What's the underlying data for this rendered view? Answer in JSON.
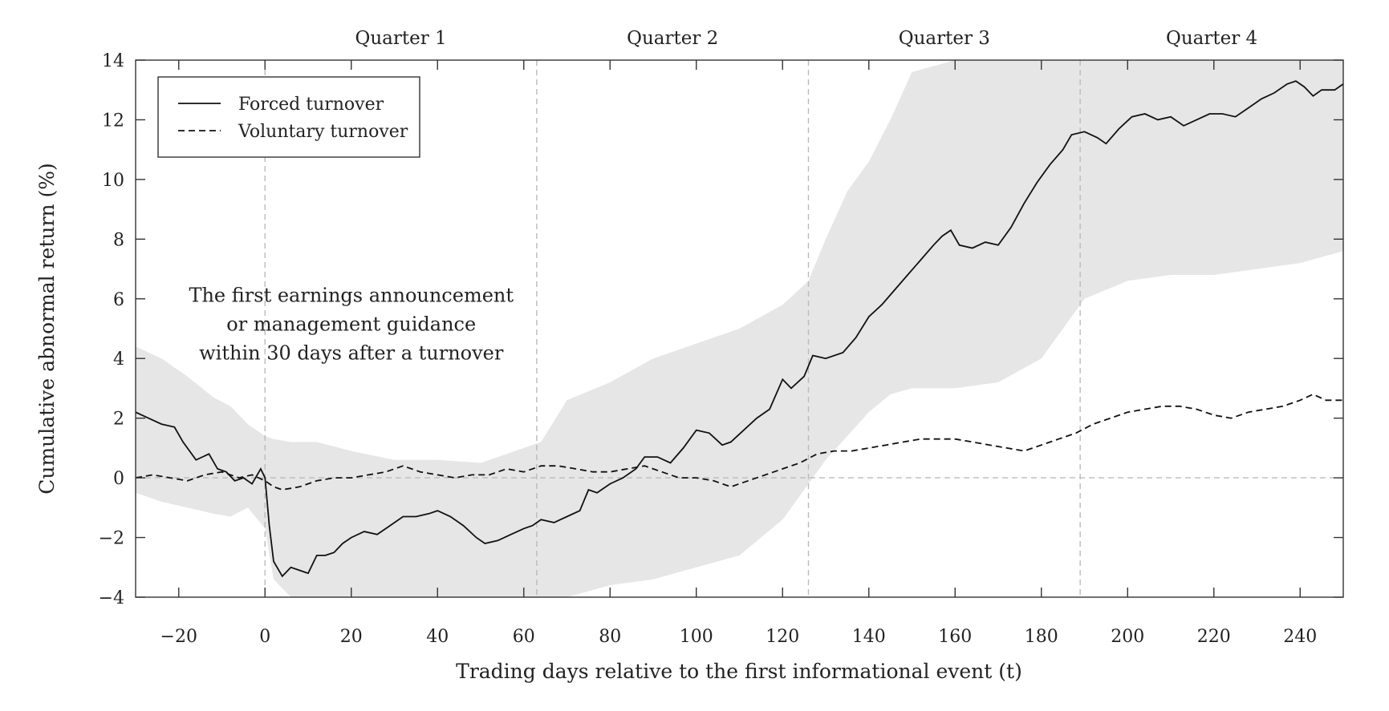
{
  "chart_data": {
    "type": "line",
    "title": "",
    "xlabel": "Trading days relative to the first informational event (t)",
    "ylabel": "Cumulative abnormal return (%)",
    "xlim": [
      -30,
      250
    ],
    "ylim": [
      -4,
      14
    ],
    "x_ticks": [
      -20,
      0,
      20,
      40,
      60,
      80,
      100,
      120,
      140,
      160,
      180,
      200,
      220,
      240
    ],
    "y_ticks": [
      -4,
      -2,
      0,
      2,
      4,
      6,
      8,
      10,
      12,
      14
    ],
    "x_tick_labels": [
      "−20",
      "0",
      "20",
      "40",
      "60",
      "80",
      "100",
      "120",
      "140",
      "160",
      "180",
      "200",
      "220",
      "240"
    ],
    "y_tick_labels": [
      "−4",
      "−2",
      "0",
      "2",
      "4",
      "6",
      "8",
      "10",
      "12",
      "14"
    ],
    "grid": false,
    "legend": {
      "placement": "top-left",
      "entries": [
        "Forced turnover",
        "Voluntary turnover"
      ]
    },
    "vertical_reference_lines": [
      0,
      63,
      126,
      189
    ],
    "horizontal_reference_line": 0,
    "quarters": [
      {
        "label": "Quarter 1",
        "from": 0,
        "to": 63
      },
      {
        "label": "Quarter 2",
        "from": 63,
        "to": 126
      },
      {
        "label": "Quarter 3",
        "from": 126,
        "to": 189
      },
      {
        "label": "Quarter 4",
        "from": 189,
        "to": 250
      }
    ],
    "annotation": {
      "lines": [
        "The first earnings announcement",
        "or management guidance",
        "within 30 days after a turnover"
      ],
      "at": [
        20,
        5.9
      ]
    },
    "series": [
      {
        "name": "Forced turnover",
        "style": "solid",
        "x": [
          -30,
          -27,
          -24,
          -21,
          -19,
          -16,
          -13,
          -11,
          -9,
          -7,
          -5,
          -3,
          -1,
          0,
          1,
          2,
          4,
          6,
          8,
          10,
          12,
          14,
          16,
          18,
          20,
          23,
          26,
          29,
          32,
          35,
          38,
          40,
          43,
          46,
          49,
          51,
          54,
          57,
          60,
          62,
          64,
          67,
          70,
          73,
          75,
          77,
          80,
          83,
          86,
          88,
          91,
          94,
          97,
          100,
          103,
          106,
          108,
          111,
          114,
          117,
          120,
          122,
          125,
          127,
          130,
          134,
          137,
          140,
          143,
          146,
          149,
          152,
          155,
          157,
          159,
          161,
          164,
          167,
          170,
          173,
          176,
          179,
          182,
          185,
          187,
          190,
          193,
          195,
          198,
          201,
          204,
          207,
          210,
          213,
          216,
          219,
          222,
          225,
          228,
          231,
          234,
          237,
          239,
          241,
          243,
          245,
          248,
          250
        ],
        "y": [
          2.2,
          2.0,
          1.8,
          1.7,
          1.2,
          0.6,
          0.8,
          0.3,
          0.2,
          -0.1,
          0.0,
          -0.2,
          0.3,
          0.0,
          -1.6,
          -2.8,
          -3.3,
          -3.0,
          -3.1,
          -3.2,
          -2.6,
          -2.6,
          -2.5,
          -2.2,
          -2.0,
          -1.8,
          -1.9,
          -1.6,
          -1.3,
          -1.3,
          -1.2,
          -1.1,
          -1.3,
          -1.6,
          -2.0,
          -2.2,
          -2.1,
          -1.9,
          -1.7,
          -1.6,
          -1.4,
          -1.5,
          -1.3,
          -1.1,
          -0.4,
          -0.5,
          -0.2,
          0.0,
          0.3,
          0.7,
          0.7,
          0.5,
          1.0,
          1.6,
          1.5,
          1.1,
          1.2,
          1.6,
          2.0,
          2.3,
          3.3,
          3.0,
          3.4,
          4.1,
          4.0,
          4.2,
          4.7,
          5.4,
          5.8,
          6.3,
          6.8,
          7.3,
          7.8,
          8.1,
          8.3,
          7.8,
          7.7,
          7.9,
          7.8,
          8.4,
          9.2,
          9.9,
          10.5,
          11.0,
          11.5,
          11.6,
          11.4,
          11.2,
          11.7,
          12.1,
          12.2,
          12.0,
          12.1,
          11.8,
          12.0,
          12.2,
          12.2,
          12.1,
          12.4,
          12.7,
          12.9,
          13.2,
          13.3,
          13.1,
          12.8,
          13.0,
          13.0,
          13.2
        ]
      },
      {
        "name": "Voluntary turnover",
        "style": "dashed",
        "x": [
          -30,
          -26,
          -22,
          -18,
          -14,
          -10,
          -6,
          -3,
          0,
          2,
          4,
          8,
          12,
          16,
          20,
          24,
          28,
          32,
          36,
          40,
          44,
          48,
          52,
          56,
          60,
          64,
          68,
          72,
          76,
          80,
          84,
          88,
          92,
          96,
          100,
          104,
          108,
          112,
          116,
          120,
          124,
          128,
          132,
          136,
          140,
          144,
          148,
          152,
          156,
          160,
          164,
          168,
          172,
          176,
          180,
          184,
          188,
          192,
          196,
          200,
          204,
          208,
          212,
          216,
          220,
          224,
          228,
          232,
          236,
          240,
          243,
          246,
          250
        ],
        "y": [
          0.0,
          0.1,
          0.0,
          -0.1,
          0.1,
          0.2,
          0.0,
          0.1,
          -0.1,
          -0.3,
          -0.4,
          -0.3,
          -0.1,
          0.0,
          0.0,
          0.1,
          0.2,
          0.4,
          0.2,
          0.1,
          0.0,
          0.1,
          0.1,
          0.3,
          0.2,
          0.4,
          0.4,
          0.3,
          0.2,
          0.2,
          0.3,
          0.4,
          0.2,
          0.0,
          0.0,
          -0.1,
          -0.3,
          -0.1,
          0.1,
          0.3,
          0.5,
          0.8,
          0.9,
          0.9,
          1.0,
          1.1,
          1.2,
          1.3,
          1.3,
          1.3,
          1.2,
          1.1,
          1.0,
          0.9,
          1.1,
          1.3,
          1.5,
          1.8,
          2.0,
          2.2,
          2.3,
          2.4,
          2.4,
          2.3,
          2.1,
          2.0,
          2.2,
          2.3,
          2.4,
          2.6,
          2.8,
          2.6,
          2.6
        ]
      }
    ],
    "confidence_band": {
      "x": [
        -30,
        -24,
        -18,
        -12,
        -8,
        -4,
        0,
        2,
        6,
        12,
        20,
        30,
        40,
        50,
        60,
        64,
        70,
        80,
        90,
        100,
        110,
        120,
        126,
        130,
        135,
        140,
        145,
        150,
        160,
        170,
        180,
        190,
        200,
        210,
        220,
        230,
        240,
        250
      ],
      "lower": [
        -0.5,
        -0.8,
        -1.0,
        -1.2,
        -1.3,
        -1.0,
        -1.7,
        -3.4,
        -4.0,
        -4.0,
        -4.0,
        -4.0,
        -4.0,
        -4.0,
        -4.0,
        -4.0,
        -4.0,
        -3.6,
        -3.4,
        -3.0,
        -2.6,
        -1.4,
        -0.2,
        0.6,
        1.4,
        2.2,
        2.8,
        3.0,
        3.0,
        3.2,
        4.0,
        6.0,
        6.6,
        6.8,
        6.8,
        7.0,
        7.2,
        7.6
      ],
      "upper": [
        4.4,
        4.0,
        3.4,
        2.7,
        2.4,
        1.8,
        1.4,
        1.3,
        1.2,
        1.2,
        0.9,
        0.6,
        0.6,
        0.5,
        1.0,
        1.2,
        2.6,
        3.2,
        4.0,
        4.5,
        5.0,
        5.8,
        6.6,
        8.0,
        9.6,
        10.6,
        12.0,
        13.6,
        14.0,
        14.0,
        14.0,
        14.0,
        14.0,
        14.0,
        14.0,
        14.0,
        14.0,
        14.0
      ]
    }
  }
}
